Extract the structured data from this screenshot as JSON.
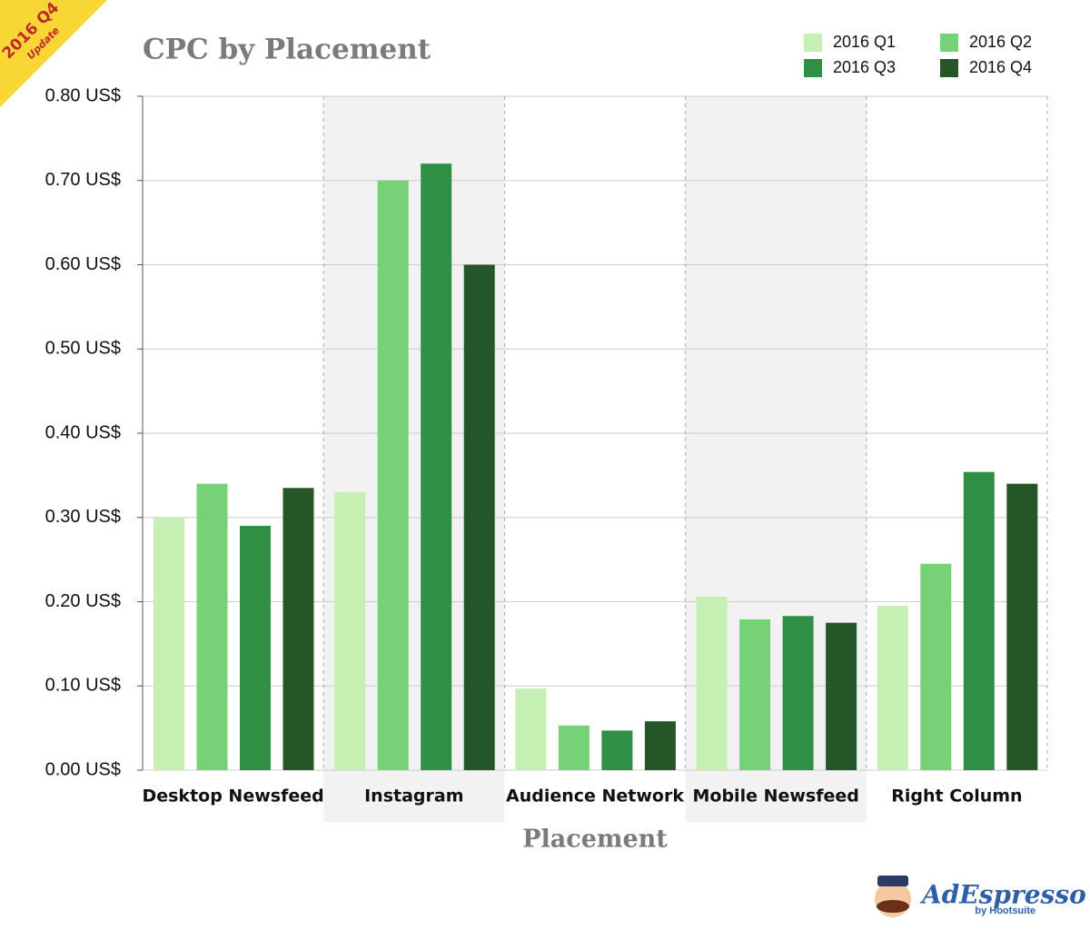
{
  "chart_data": {
    "type": "bar",
    "title": "CPC by Placement",
    "x_label": "Placement",
    "categories": [
      "Desktop Newsfeed",
      "Instagram",
      "Audience Network",
      "Mobile Newsfeed",
      "Right Column"
    ],
    "series": [
      {
        "name": "2016 Q1",
        "color": "#c6efb3",
        "values": [
          0.3,
          0.33,
          0.097,
          0.206,
          0.195
        ]
      },
      {
        "name": "2016 Q2",
        "color": "#77d177",
        "values": [
          0.34,
          0.7,
          0.053,
          0.179,
          0.245
        ]
      },
      {
        "name": "2016 Q3",
        "color": "#2f8f44",
        "values": [
          0.29,
          0.72,
          0.047,
          0.183,
          0.354
        ]
      },
      {
        "name": "2016 Q4",
        "color": "#255628",
        "values": [
          0.335,
          0.6,
          0.058,
          0.175,
          0.34
        ]
      }
    ],
    "ylim": [
      0,
      0.8
    ],
    "yticks": [
      {
        "value": 0,
        "label": "0.00 US$"
      },
      {
        "value": 0.1,
        "label": "0.10 US$"
      },
      {
        "value": 0.2,
        "label": "0.20 US$"
      },
      {
        "value": 0.3,
        "label": "0.30 US$"
      },
      {
        "value": 0.4,
        "label": "0.40 US$"
      },
      {
        "value": 0.5,
        "label": "0.50 US$"
      },
      {
        "value": 0.6,
        "label": "0.60 US$"
      },
      {
        "value": 0.7,
        "label": "0.70 US$"
      },
      {
        "value": 0.8,
        "label": "0.80 US$"
      }
    ],
    "grid": true,
    "legend": "top-right"
  },
  "badge": {
    "title": "2016 Q4",
    "subtitle": "Update"
  },
  "logo": {
    "name": "AdEspresso",
    "by": "by Hootsuite"
  }
}
